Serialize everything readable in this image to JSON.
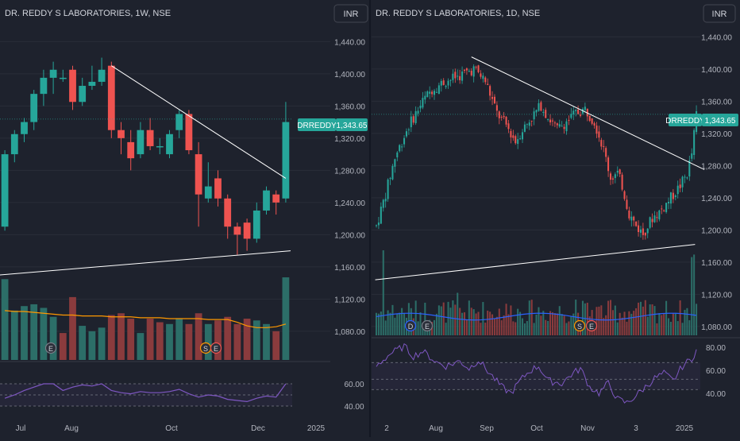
{
  "theme": {
    "background": "#1e222d",
    "grid": "#2a2e39",
    "up": "#26a69a",
    "down": "#ef5350",
    "text": "#d1d4dc",
    "axis_text": "#b2b5be",
    "trendline": "#ffffff",
    "rsi": "#7e57c2",
    "volume_ma_1w": "#ff9800",
    "volume_ma_1d": "#2962ff"
  },
  "panels": [
    {
      "title": "DR. REDDY S LABORATORIES, 1W, NSE",
      "currency_button": "INR",
      "symbol_tag": "DRREDDY",
      "last_price": "1,343.65",
      "price_ticks": [
        "1,440.00",
        "1,400.00",
        "1,360.00",
        "1,320.00",
        "1,280.00",
        "1,240.00",
        "1,200.00",
        "1,160.00",
        "1,120.00",
        "1,080.00"
      ],
      "rsi_ticks": [
        "60.00",
        "40.00"
      ],
      "time_labels": [
        "Jul",
        "Aug",
        "Oct",
        "Dec",
        "2025"
      ],
      "event_markers": [
        "E",
        "S",
        "E"
      ]
    },
    {
      "title": "DR. REDDY S LABORATORIES, 1D, NSE",
      "currency_button": "INR",
      "symbol_tag": "DRREDDY",
      "last_price": "1,343.65",
      "price_ticks": [
        "1,440.00",
        "1,400.00",
        "1,360.00",
        "1,320.00",
        "1,280.00",
        "1,240.00",
        "1,200.00",
        "1,160.00",
        "1,120.00",
        "1,080.00"
      ],
      "rsi_ticks": [
        "80.00",
        "60.00",
        "40.00"
      ],
      "time_labels": [
        "2",
        "Aug",
        "Sep",
        "Oct",
        "Nov",
        "3",
        "2025"
      ],
      "event_markers": [
        "D",
        "E",
        "S",
        "E"
      ]
    }
  ],
  "chart_data": [
    {
      "type": "candlestick",
      "title": "DR. REDDY S LABORATORIES, 1W, NSE",
      "interval": "1W",
      "exchange": "NSE",
      "currency": "INR",
      "ylim": [
        1070,
        1465
      ],
      "last_price": 1343.65,
      "candles": [
        [
          1210,
          1300,
          1205,
          1305
        ],
        [
          1300,
          1325,
          1290,
          1330
        ],
        [
          1325,
          1340,
          1315,
          1345
        ],
        [
          1340,
          1375,
          1330,
          1380
        ],
        [
          1375,
          1395,
          1360,
          1405
        ],
        [
          1395,
          1405,
          1375,
          1415
        ],
        [
          1395,
          1395,
          1390,
          1405
        ],
        [
          1405,
          1365,
          1355,
          1410
        ],
        [
          1365,
          1385,
          1360,
          1395
        ],
        [
          1385,
          1390,
          1380,
          1410
        ],
        [
          1390,
          1405,
          1385,
          1420
        ],
        [
          1410,
          1330,
          1320,
          1415
        ],
        [
          1330,
          1320,
          1300,
          1340
        ],
        [
          1315,
          1295,
          1280,
          1330
        ],
        [
          1300,
          1330,
          1295,
          1340
        ],
        [
          1330,
          1310,
          1305,
          1345
        ],
        [
          1310,
          1310,
          1300,
          1320
        ],
        [
          1300,
          1325,
          1295,
          1330
        ],
        [
          1330,
          1350,
          1320,
          1355
        ],
        [
          1350,
          1305,
          1300,
          1355
        ],
        [
          1300,
          1250,
          1210,
          1315
        ],
        [
          1245,
          1260,
          1240,
          1290
        ],
        [
          1270,
          1245,
          1235,
          1280
        ],
        [
          1245,
          1210,
          1195,
          1250
        ],
        [
          1210,
          1200,
          1175,
          1215
        ],
        [
          1215,
          1195,
          1180,
          1220
        ],
        [
          1195,
          1230,
          1190,
          1240
        ],
        [
          1230,
          1255,
          1225,
          1260
        ],
        [
          1250,
          1240,
          1225,
          1255
        ],
        [
          1245,
          1340,
          1240,
          1365
        ]
      ],
      "volume": [
        {
          "v": 0.9,
          "up": true
        },
        {
          "v": 0.55,
          "up": true
        },
        {
          "v": 0.6,
          "up": true
        },
        {
          "v": 0.62,
          "up": true
        },
        {
          "v": 0.58,
          "up": true
        },
        {
          "v": 0.48,
          "up": true
        },
        {
          "v": 0.3,
          "up": false
        },
        {
          "v": 0.7,
          "up": false
        },
        {
          "v": 0.38,
          "up": true
        },
        {
          "v": 0.32,
          "up": true
        },
        {
          "v": 0.36,
          "up": true
        },
        {
          "v": 0.5,
          "up": false
        },
        {
          "v": 0.52,
          "up": false
        },
        {
          "v": 0.46,
          "up": false
        },
        {
          "v": 0.3,
          "up": true
        },
        {
          "v": 0.46,
          "up": false
        },
        {
          "v": 0.42,
          "up": false
        },
        {
          "v": 0.4,
          "up": true
        },
        {
          "v": 0.46,
          "up": true
        },
        {
          "v": 0.4,
          "up": false
        },
        {
          "v": 0.52,
          "up": false
        },
        {
          "v": 0.4,
          "up": true
        },
        {
          "v": 0.44,
          "up": false
        },
        {
          "v": 0.48,
          "up": false
        },
        {
          "v": 0.4,
          "up": false
        },
        {
          "v": 0.46,
          "up": false
        },
        {
          "v": 0.44,
          "up": true
        },
        {
          "v": 0.4,
          "up": true
        },
        {
          "v": 0.32,
          "up": false
        },
        {
          "v": 0.92,
          "up": true
        }
      ],
      "volume_ma": [
        0.55,
        0.54,
        0.54,
        0.53,
        0.52,
        0.51,
        0.5,
        0.5,
        0.49,
        0.49,
        0.49,
        0.48,
        0.48,
        0.48,
        0.47,
        0.47,
        0.47,
        0.46,
        0.46,
        0.46,
        0.46,
        0.45,
        0.45,
        0.45,
        0.42,
        0.38,
        0.36,
        0.36,
        0.37,
        0.4
      ],
      "rsi": {
        "ylim": [
          30,
          80
        ],
        "levels": [
          70,
          50,
          30
        ],
        "values": [
          47,
          50,
          54,
          57,
          60,
          60,
          54,
          57,
          59,
          58,
          60,
          54,
          52,
          51,
          53,
          52,
          52,
          53,
          55,
          51,
          48,
          50,
          49,
          46,
          45,
          44,
          47,
          49,
          48,
          60
        ]
      },
      "trendlines": [
        {
          "from": [
            11,
            1410
          ],
          "to": [
            29,
            1270
          ]
        },
        {
          "from": [
            -0.5,
            1150
          ],
          "to": [
            29.5,
            1180
          ]
        }
      ]
    },
    {
      "type": "candlestick",
      "title": "DR. REDDY S LABORATORIES, 1D, NSE",
      "interval": "1D",
      "exchange": "NSE",
      "currency": "INR",
      "ylim": [
        1070,
        1465
      ],
      "last_price": 1343.65,
      "close_path": [
        [
          0,
          1205
        ],
        [
          4,
          1245
        ],
        [
          8,
          1290
        ],
        [
          14,
          1330
        ],
        [
          20,
          1360
        ],
        [
          24,
          1375
        ],
        [
          30,
          1385
        ],
        [
          36,
          1392
        ],
        [
          42,
          1400
        ],
        [
          44,
          1395
        ],
        [
          47,
          1385
        ],
        [
          52,
          1345
        ],
        [
          56,
          1330
        ],
        [
          60,
          1310
        ],
        [
          63,
          1325
        ],
        [
          67,
          1340
        ],
        [
          71,
          1355
        ],
        [
          74,
          1340
        ],
        [
          78,
          1325
        ],
        [
          82,
          1335
        ],
        [
          86,
          1345
        ],
        [
          90,
          1350
        ],
        [
          94,
          1335
        ],
        [
          98,
          1300
        ],
        [
          101,
          1265
        ],
        [
          104,
          1270
        ],
        [
          106,
          1255
        ],
        [
          109,
          1220
        ],
        [
          112,
          1205
        ],
        [
          115,
          1195
        ],
        [
          119,
          1215
        ],
        [
          123,
          1225
        ],
        [
          127,
          1240
        ],
        [
          131,
          1255
        ],
        [
          134,
          1270
        ],
        [
          136,
          1295
        ],
        [
          138,
          1343.65
        ]
      ],
      "volume_profile": {
        "base": 0.28,
        "spikes": [
          {
            "i": 3,
            "v": 1.0
          },
          {
            "i": 136,
            "v": 0.92
          },
          {
            "i": 137,
            "v": 0.95
          },
          {
            "i": 35,
            "v": 0.5
          },
          {
            "i": 86,
            "v": 0.42
          }
        ]
      },
      "rsi": {
        "ylim": [
          25,
          85
        ],
        "levels": [
          70,
          50,
          30
        ],
        "path": [
          [
            0,
            62
          ],
          [
            6,
            72
          ],
          [
            12,
            78
          ],
          [
            16,
            70
          ],
          [
            20,
            74
          ],
          [
            26,
            65
          ],
          [
            30,
            62
          ],
          [
            36,
            66
          ],
          [
            40,
            60
          ],
          [
            44,
            67
          ],
          [
            48,
            58
          ],
          [
            54,
            45
          ],
          [
            58,
            40
          ],
          [
            62,
            50
          ],
          [
            66,
            58
          ],
          [
            70,
            62
          ],
          [
            74,
            50
          ],
          [
            80,
            48
          ],
          [
            84,
            55
          ],
          [
            88,
            60
          ],
          [
            92,
            45
          ],
          [
            96,
            40
          ],
          [
            100,
            48
          ],
          [
            104,
            35
          ],
          [
            108,
            32
          ],
          [
            112,
            38
          ],
          [
            116,
            45
          ],
          [
            120,
            52
          ],
          [
            124,
            56
          ],
          [
            128,
            50
          ],
          [
            132,
            62
          ],
          [
            136,
            68
          ],
          [
            138,
            75
          ]
        ]
      },
      "trendlines": [
        {
          "from": [
            41,
            1415
          ],
          "to": [
            138,
            1275
          ]
        },
        {
          "from": [
            -0.5,
            1138
          ],
          "to": [
            134,
            1182
          ]
        }
      ]
    }
  ]
}
